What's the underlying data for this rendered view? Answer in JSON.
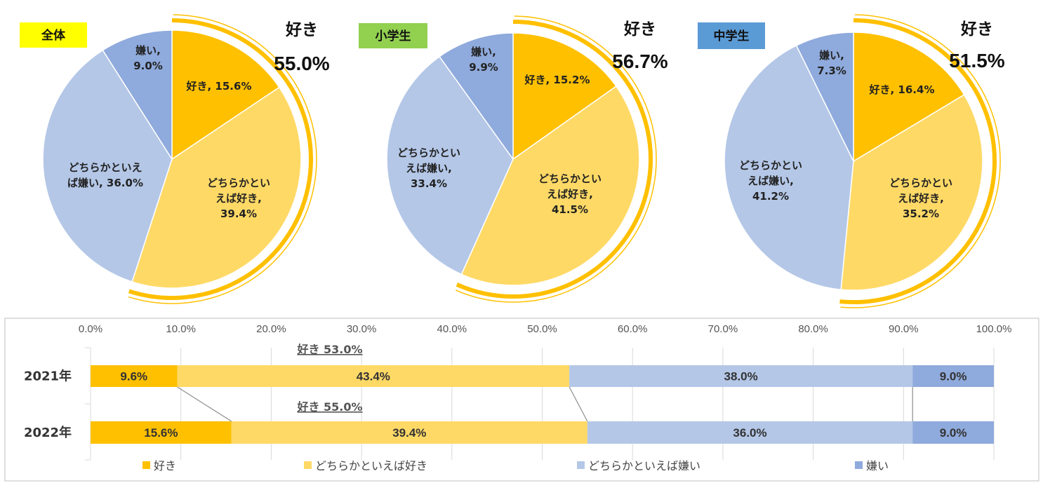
{
  "colors": {
    "like": "#FFC000",
    "somewhat_like": "#FFD966",
    "somewhat_dislike": "#B4C7E7",
    "dislike": "#8FAADC",
    "ring": "#FFC000"
  },
  "chart_data": [
    {
      "type": "pie",
      "badge": "全体",
      "badge_color": "#FFFF00",
      "like_total_label": "好き",
      "like_total_value": "55.0%",
      "slices": [
        {
          "name": "好き",
          "value": 15.6,
          "label_lines": [
            "好き, 15.6%"
          ]
        },
        {
          "name": "どちらかといえば好き",
          "value": 39.4,
          "label_lines": [
            "どちらかとい",
            "えば好き,",
            "39.4%"
          ]
        },
        {
          "name": "どちらかといえば嫌い",
          "value": 36.0,
          "label_lines": [
            "どちらかといえ",
            "ば嫌い, 36.0%"
          ]
        },
        {
          "name": "嫌い",
          "value": 9.0,
          "label_lines": [
            "嫌い,",
            "9.0%"
          ]
        }
      ]
    },
    {
      "type": "pie",
      "badge": "小学生",
      "badge_color": "#92D050",
      "like_total_label": "好き",
      "like_total_value": "56.7%",
      "slices": [
        {
          "name": "好き",
          "value": 15.2,
          "label_lines": [
            "好き, 15.2%"
          ]
        },
        {
          "name": "どちらかといえば好き",
          "value": 41.5,
          "label_lines": [
            "どちらかとい",
            "えば好き,",
            "41.5%"
          ]
        },
        {
          "name": "どちらかといえば嫌い",
          "value": 33.4,
          "label_lines": [
            "どちらかとい",
            "えば嫌い,",
            "33.4%"
          ]
        },
        {
          "name": "嫌い",
          "value": 9.9,
          "label_lines": [
            "嫌い,",
            "9.9%"
          ]
        }
      ]
    },
    {
      "type": "pie",
      "badge": "中学生",
      "badge_color": "#5B9BD5",
      "like_total_label": "好き",
      "like_total_value": "51.5%",
      "slices": [
        {
          "name": "好き",
          "value": 16.4,
          "label_lines": [
            "好き, 16.4%"
          ]
        },
        {
          "name": "どちらかといえば好き",
          "value": 35.2,
          "label_lines": [
            "どちらかとい",
            "えば好き,",
            "35.2%"
          ]
        },
        {
          "name": "どちらかといえば嫌い",
          "value": 41.2,
          "label_lines": [
            "どちらかとい",
            "えば嫌い,",
            "41.2%"
          ]
        },
        {
          "name": "嫌い",
          "value": 7.3,
          "label_lines": [
            "嫌い,",
            "7.3%"
          ]
        }
      ]
    },
    {
      "type": "bar",
      "orientation": "horizontal-stacked",
      "x_ticks": [
        "0.0%",
        "10.0%",
        "20.0%",
        "30.0%",
        "40.0%",
        "50.0%",
        "60.0%",
        "70.0%",
        "80.0%",
        "90.0%",
        "100.0%"
      ],
      "xlim": [
        0,
        100
      ],
      "categories": [
        "2021年",
        "2022年"
      ],
      "series": [
        {
          "name": "好き",
          "values": [
            9.6,
            15.6
          ],
          "labels": [
            "9.6%",
            "15.6%"
          ]
        },
        {
          "name": "どちらかといえば好き",
          "values": [
            43.4,
            39.4
          ],
          "labels": [
            "43.4%",
            "39.4%"
          ]
        },
        {
          "name": "どちらかといえば嫌い",
          "values": [
            38.0,
            36.0
          ],
          "labels": [
            "38.0%",
            "36.0%"
          ]
        },
        {
          "name": "嫌い",
          "values": [
            9.0,
            9.0
          ],
          "labels": [
            "9.0%",
            "9.0%"
          ]
        }
      ],
      "annotations": [
        "好き 53.0%",
        "好き 55.0%"
      ],
      "legend": [
        "好き",
        "どちらかといえば好き",
        "どちらかといえば嫌い",
        "嫌い"
      ]
    }
  ]
}
